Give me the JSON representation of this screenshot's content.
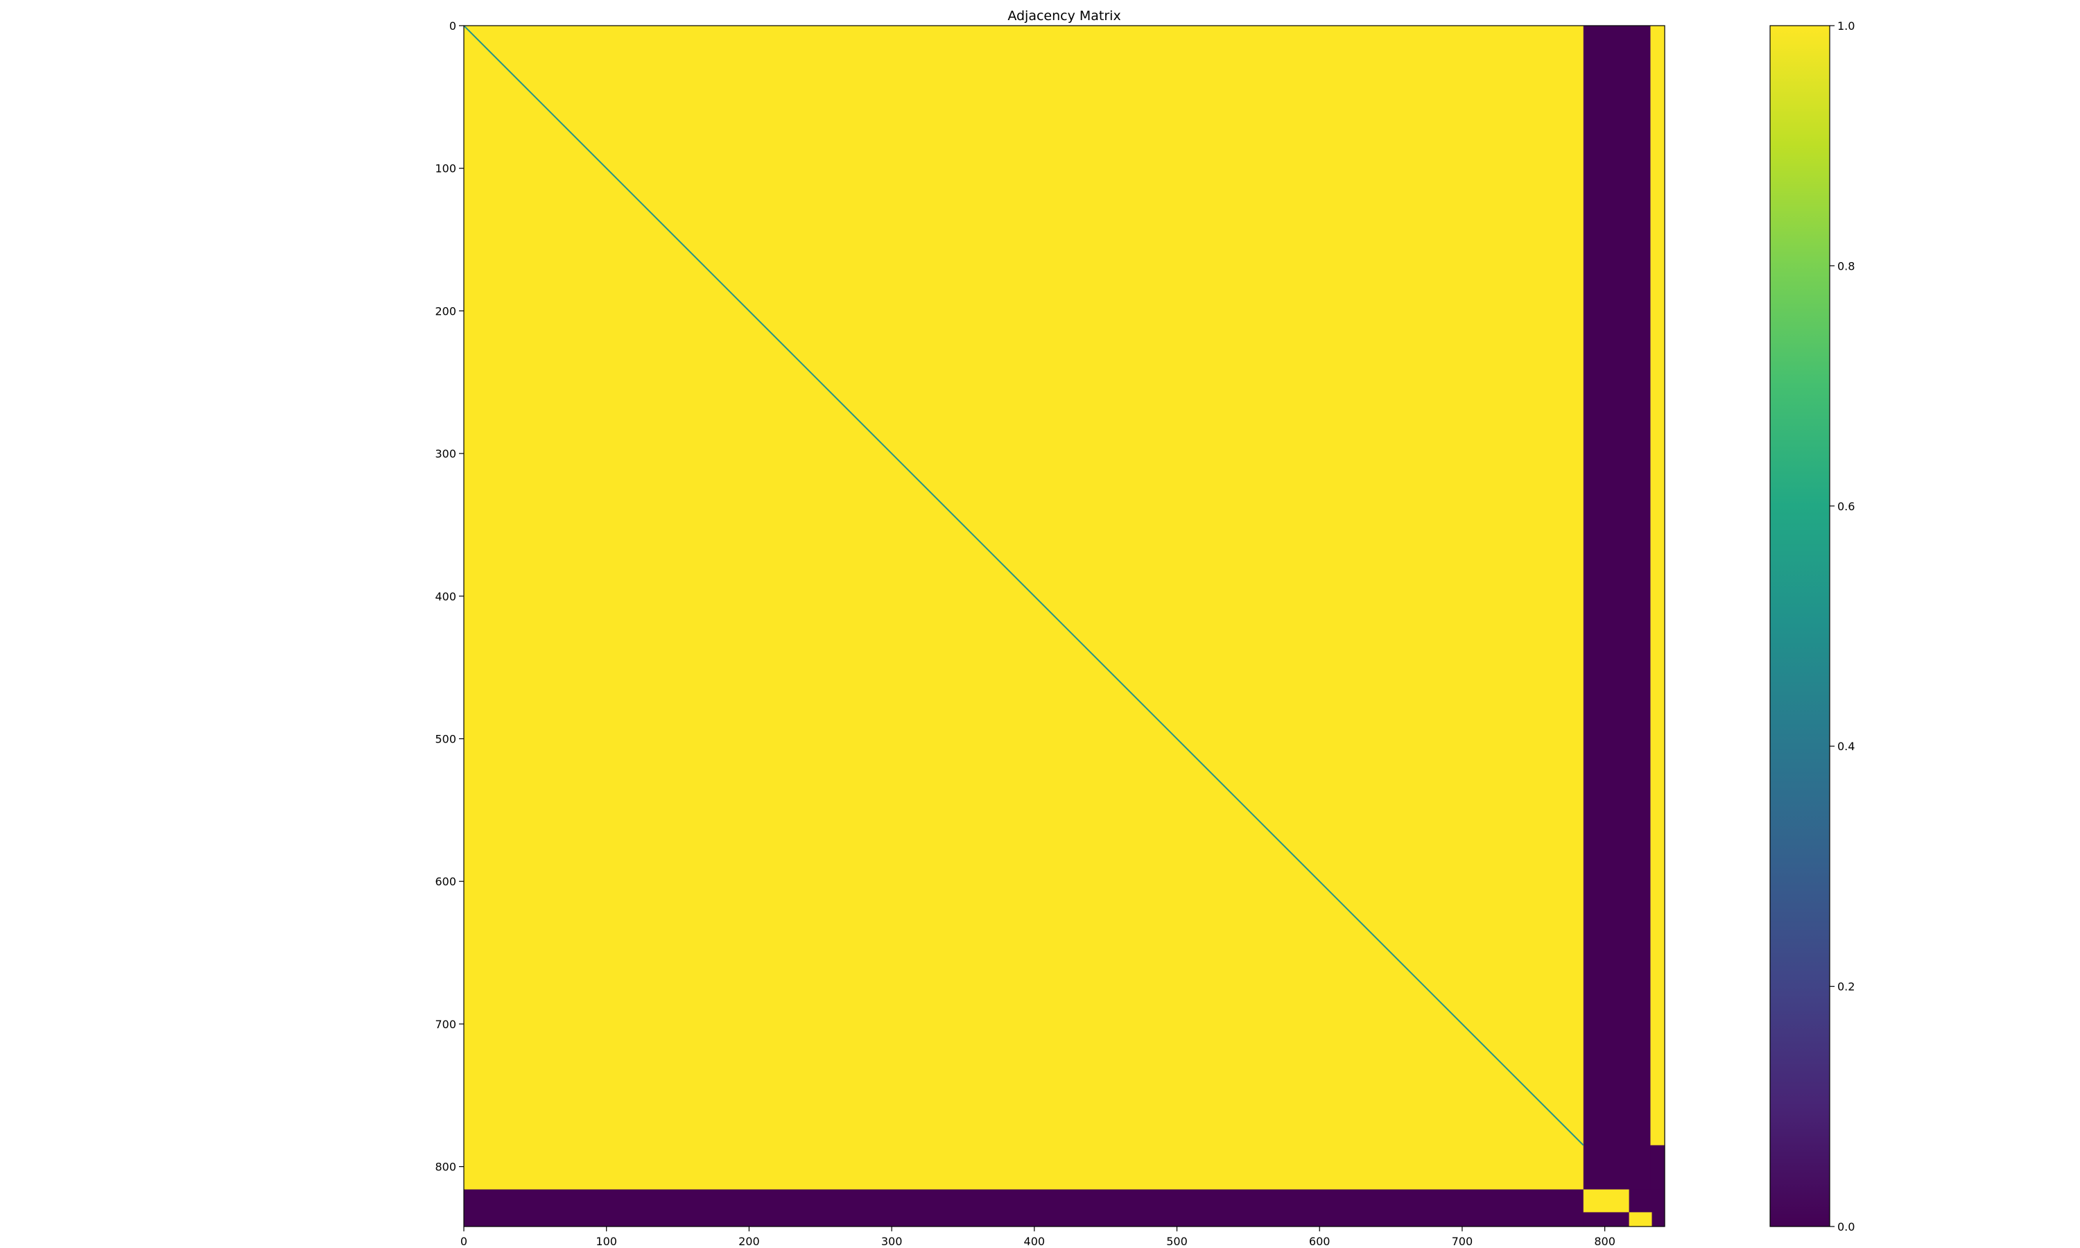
{
  "chart_data": [
    {
      "type": "heatmap",
      "title": "Adjacency Matrix",
      "xlabel": "",
      "ylabel": "",
      "matrix_size": 842,
      "xlim": [
        0,
        842
      ],
      "ylim": [
        842,
        0
      ],
      "x_ticks": [
        0,
        100,
        200,
        300,
        400,
        500,
        600,
        700,
        800
      ],
      "y_ticks": [
        0,
        100,
        200,
        300,
        400,
        500,
        600,
        700,
        800
      ],
      "value_range": [
        0,
        1
      ],
      "colormap": "viridis",
      "grid": false,
      "regions": [
        {
          "name": "main-block",
          "rows": [
            0,
            816
          ],
          "cols": [
            0,
            785
          ],
          "value": 1
        },
        {
          "name": "right-block-a",
          "rows": [
            0,
            816
          ],
          "cols": [
            785,
            832
          ],
          "value": 0
        },
        {
          "name": "right-strip",
          "rows": [
            0,
            785
          ],
          "cols": [
            832,
            842
          ],
          "value": 1
        },
        {
          "name": "right-strip-lower",
          "rows": [
            785,
            816
          ],
          "cols": [
            832,
            842
          ],
          "value": 0
        },
        {
          "name": "bottom-band",
          "rows": [
            816,
            842
          ],
          "cols": [
            0,
            785
          ],
          "value": 0
        },
        {
          "name": "corner-block-1",
          "rows": [
            816,
            832
          ],
          "cols": [
            785,
            817
          ],
          "value": 1
        },
        {
          "name": "corner-gap-1",
          "rows": [
            816,
            832
          ],
          "cols": [
            817,
            842
          ],
          "value": 0
        },
        {
          "name": "corner-gap-2",
          "rows": [
            832,
            842
          ],
          "cols": [
            785,
            817
          ],
          "value": 0
        },
        {
          "name": "corner-block-2",
          "rows": [
            832,
            842
          ],
          "cols": [
            817,
            833
          ],
          "value": 1
        },
        {
          "name": "corner-gap-3",
          "rows": [
            832,
            842
          ],
          "cols": [
            833,
            842
          ],
          "value": 0
        }
      ],
      "diagonal": {
        "from": 0,
        "to": 785,
        "value": 0.5
      },
      "colorbar": {
        "ticks": [
          0.0,
          0.2,
          0.4,
          0.6,
          0.8,
          1.0
        ],
        "tick_labels": [
          "0.0",
          "0.2",
          "0.4",
          "0.6",
          "0.8",
          "1.0"
        ],
        "placement": "right"
      }
    }
  ],
  "colors": {
    "high": "#fde725",
    "low": "#440154",
    "mid": "#21918c"
  }
}
